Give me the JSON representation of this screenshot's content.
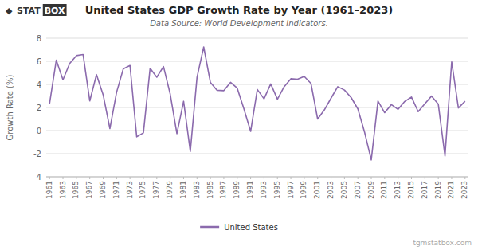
{
  "chart_data": {
    "type": "line",
    "title": "United States GDP Growth Rate by Year (1961–2023)",
    "subtitle": "Data Source: World Development Indicators.",
    "ylabel": "Growth Rate (%)",
    "annotations": [
      "tgmstatbox.com",
      "◆",
      "STAT",
      "BOX"
    ],
    "x": [
      1961,
      1962,
      1963,
      1964,
      1965,
      1966,
      1967,
      1968,
      1969,
      1970,
      1971,
      1972,
      1973,
      1974,
      1975,
      1976,
      1977,
      1978,
      1979,
      1980,
      1981,
      1982,
      1983,
      1984,
      1985,
      1986,
      1987,
      1988,
      1989,
      1990,
      1991,
      1992,
      1993,
      1994,
      1995,
      1996,
      1997,
      1998,
      1999,
      2000,
      2001,
      2002,
      2003,
      2004,
      2005,
      2006,
      2007,
      2008,
      2009,
      2010,
      2011,
      2012,
      2013,
      2014,
      2015,
      2016,
      2017,
      2018,
      2019,
      2020,
      2021,
      2022,
      2023
    ],
    "series": [
      {
        "name": "United States",
        "color": "#8b6aad",
        "values": [
          2.34,
          6.1,
          4.4,
          5.81,
          6.49,
          6.59,
          2.57,
          4.85,
          3.09,
          0.17,
          3.32,
          5.35,
          5.64,
          -0.54,
          -0.2,
          5.39,
          4.62,
          5.54,
          3.17,
          -0.27,
          2.54,
          -1.8,
          4.61,
          7.24,
          4.17,
          3.49,
          3.46,
          4.18,
          3.68,
          1.88,
          -0.07,
          3.56,
          2.75,
          4.04,
          2.72,
          3.8,
          4.49,
          4.45,
          4.69,
          4.09,
          1.0,
          1.79,
          2.81,
          3.8,
          3.51,
          2.86,
          1.88,
          -0.14,
          -2.54,
          2.56,
          1.55,
          2.25,
          1.84,
          2.53,
          2.91,
          1.64,
          2.33,
          2.99,
          2.29,
          -2.2,
          5.95,
          1.96,
          2.54
        ]
      }
    ],
    "xlim": [
      1960.5,
      2023.5
    ],
    "xticks": [
      1961,
      1963,
      1965,
      1967,
      1969,
      1971,
      1973,
      1975,
      1977,
      1979,
      1981,
      1983,
      1985,
      1987,
      1989,
      1991,
      1993,
      1995,
      1997,
      1999,
      2001,
      2003,
      2005,
      2007,
      2009,
      2011,
      2013,
      2015,
      2017,
      2019,
      2021,
      2023
    ],
    "ylim": [
      -4,
      8
    ],
    "yticks": [
      -4,
      -2,
      0,
      2,
      4,
      6,
      8
    ],
    "grid": true,
    "legend": "bottom"
  }
}
